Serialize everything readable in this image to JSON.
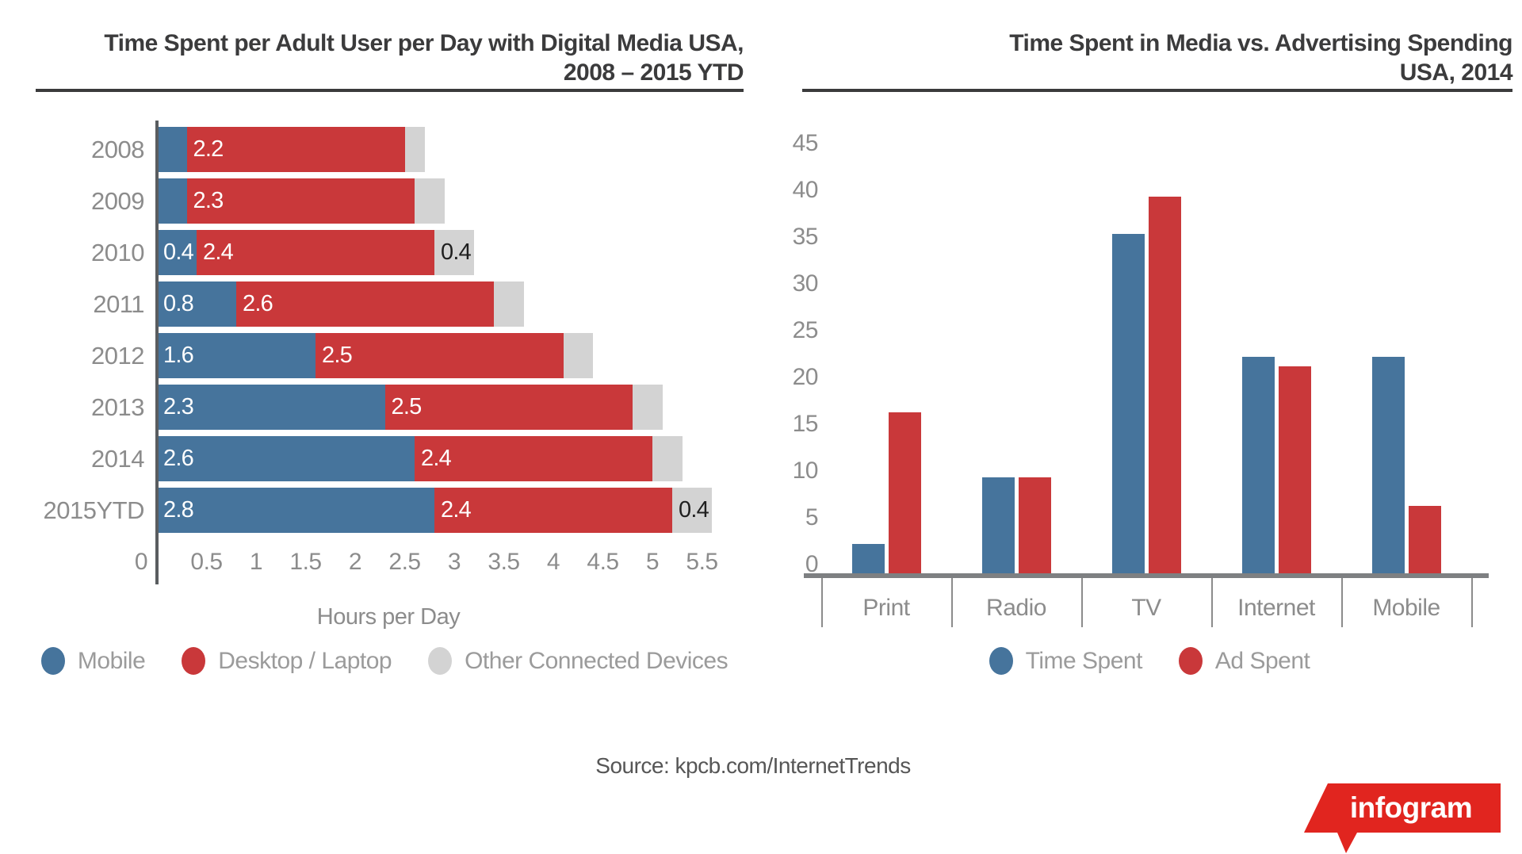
{
  "page": {
    "background": "#FFFFFF"
  },
  "left_section": {
    "title_line1": "Time Spent per Adult User per Day with Digital Media USA,",
    "title_line2": "2008 – 2015 YTD"
  },
  "right_section": {
    "title_line1": "Time Spent in Media vs. Advertising Spending",
    "title_line2": "USA, 2014"
  },
  "footer": {
    "source_text": "Source: kpcb.com/InternetTrends",
    "logo_text": "infogram",
    "logo_color": "#E1251F"
  },
  "colors": {
    "blue": "#46749C",
    "red": "#C9383A",
    "gray": "#D3D3D3",
    "title_text": "#3B3B3C",
    "axis_text": "#8C8C8C",
    "legend_text": "#9B9B9B",
    "axis_line_left": "#5A5D60",
    "axis_line_right": "#7E8082",
    "bar_label_light": "#FFFFFF",
    "bar_label_dark": "#1F1F1F",
    "source_text": "#565656"
  },
  "chart_data": [
    {
      "type": "bar",
      "orientation": "horizontal",
      "stacked": true,
      "title": "Time Spent per Adult User per Day with Digital Media USA, 2008 – 2015 YTD",
      "xlabel": "Hours per Day",
      "categories": [
        "2008",
        "2009",
        "2010",
        "2011",
        "2012",
        "2013",
        "2014",
        "2015YTD"
      ],
      "series": [
        {
          "name": "Mobile",
          "color_key": "blue",
          "values": [
            0.3,
            0.3,
            0.4,
            0.8,
            1.6,
            2.3,
            2.6,
            2.8
          ],
          "bar_labels": [
            "",
            "",
            "0.4",
            "0.8",
            "1.6",
            "2.3",
            "2.6",
            "2.8"
          ]
        },
        {
          "name": "Desktop / Laptop",
          "color_key": "red",
          "values": [
            2.2,
            2.3,
            2.4,
            2.6,
            2.5,
            2.5,
            2.4,
            2.4
          ],
          "bar_labels": [
            "2.2",
            "2.3",
            "2.4",
            "2.6",
            "2.5",
            "2.5",
            "2.4",
            "2.4"
          ]
        },
        {
          "name": "Other Connected Devices",
          "color_key": "gray",
          "values": [
            0.2,
            0.3,
            0.4,
            0.3,
            0.3,
            0.3,
            0.3,
            0.4
          ],
          "bar_labels": [
            "",
            "",
            "0.4",
            "",
            "",
            "",
            "",
            "0.4"
          ]
        }
      ],
      "x_ticks": [
        0,
        0.5,
        1,
        1.5,
        2,
        2.5,
        3,
        3.5,
        4,
        4.5,
        5,
        5.5
      ],
      "x_tick_labels": [
        "0",
        "0.5",
        "1",
        "1.5",
        "2",
        "2.5",
        "3",
        "3.5",
        "4",
        "4.5",
        "5",
        "5.5"
      ],
      "xlim": [
        0,
        5.75
      ],
      "grid": false,
      "legend": [
        "Mobile",
        "Desktop / Laptop",
        "Other Connected Devices"
      ],
      "legend_position": "bottom"
    },
    {
      "type": "bar",
      "orientation": "vertical",
      "grouped": true,
      "title": "Time Spent in Media vs. Advertising Spending USA, 2014",
      "categories": [
        "Print",
        "Radio",
        "TV",
        "Internet",
        "Mobile"
      ],
      "series": [
        {
          "name": "Time Spent",
          "color_key": "blue",
          "values": [
            2.2,
            9.3,
            35.3,
            22.2,
            22.2
          ]
        },
        {
          "name": "Ad Spent",
          "color_key": "red",
          "values": [
            16.3,
            9.3,
            39.3,
            21.2,
            6.3
          ]
        }
      ],
      "y_ticks": [
        45,
        40,
        35,
        30,
        25,
        20,
        15,
        10,
        5,
        0
      ],
      "ylim": [
        0,
        47
      ],
      "grid": false,
      "legend": [
        "Time Spent",
        "Ad Spent"
      ],
      "legend_position": "bottom"
    }
  ]
}
